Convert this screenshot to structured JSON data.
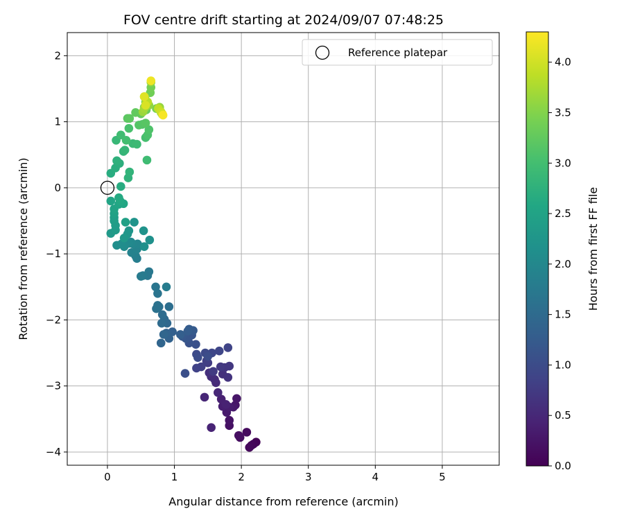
{
  "chart_data": {
    "type": "scatter",
    "title": "FOV centre drift starting at 2024/09/07 07:48:25",
    "xlabel": "Angular distance from reference (arcmin)",
    "ylabel": "Rotation from reference (arcmin)",
    "xlim": [
      -0.6,
      5.85
    ],
    "ylim": [
      -4.2,
      2.35
    ],
    "x_ticks": [
      0,
      1,
      2,
      3,
      4,
      5
    ],
    "y_ticks": [
      2,
      1,
      0,
      -1,
      -2,
      -3,
      -4
    ],
    "x_tick_labels": [
      "0",
      "1",
      "2",
      "3",
      "4",
      "5"
    ],
    "y_tick_labels": [
      "2",
      "1",
      "0",
      "−1",
      "−2",
      "−3",
      "−4"
    ],
    "grid": true,
    "legend": {
      "position": "top-right",
      "label": "Reference platepar"
    },
    "reference_point": {
      "x": 0,
      "y": 0
    },
    "colorbar": {
      "label": "Hours from first FF file",
      "colormap": "viridis",
      "range": [
        0,
        4.3
      ],
      "ticks": [
        0.0,
        0.5,
        1.0,
        1.5,
        2.0,
        2.5,
        3.0,
        3.5,
        4.0
      ],
      "tick_labels": [
        "0.0",
        "0.5",
        "1.0",
        "1.5",
        "2.0",
        "2.5",
        "3.0",
        "3.5",
        "4.0"
      ]
    },
    "points": [
      [
        2.22,
        -3.85,
        0.03
      ],
      [
        2.18,
        -3.88,
        0.05
      ],
      [
        2.15,
        -3.9,
        0.08
      ],
      [
        2.12,
        -3.93,
        0.1
      ],
      [
        2.08,
        -3.7,
        0.12
      ],
      [
        1.98,
        -3.78,
        0.15
      ],
      [
        1.96,
        -3.75,
        0.18
      ],
      [
        1.82,
        -3.6,
        0.2
      ],
      [
        1.82,
        -3.52,
        0.23
      ],
      [
        1.91,
        -3.29,
        0.25
      ],
      [
        1.93,
        -3.19,
        0.27
      ],
      [
        1.88,
        -3.32,
        0.3
      ],
      [
        1.78,
        -3.4,
        0.32
      ],
      [
        1.82,
        -3.32,
        0.35
      ],
      [
        1.72,
        -3.31,
        0.37
      ],
      [
        1.7,
        -3.2,
        0.4
      ],
      [
        1.77,
        -3.28,
        0.42
      ],
      [
        1.55,
        -3.63,
        0.45
      ],
      [
        1.45,
        -3.17,
        0.47
      ],
      [
        1.65,
        -3.1,
        0.5
      ],
      [
        1.62,
        -2.95,
        0.52
      ],
      [
        1.6,
        -2.9,
        0.55
      ],
      [
        1.55,
        -2.86,
        0.57
      ],
      [
        1.52,
        -2.8,
        0.6
      ],
      [
        1.72,
        -2.82,
        0.62
      ],
      [
        1.8,
        -2.87,
        0.65
      ],
      [
        1.75,
        -2.72,
        0.67
      ],
      [
        1.82,
        -2.7,
        0.7
      ],
      [
        1.69,
        -2.71,
        0.72
      ],
      [
        1.58,
        -2.78,
        0.75
      ],
      [
        1.5,
        -2.65,
        0.77
      ],
      [
        1.48,
        -2.62,
        0.8
      ],
      [
        1.4,
        -2.71,
        0.82
      ],
      [
        1.33,
        -2.73,
        0.85
      ],
      [
        1.8,
        -2.42,
        0.87
      ],
      [
        1.67,
        -2.47,
        0.9
      ],
      [
        1.56,
        -2.5,
        0.92
      ],
      [
        1.46,
        -2.5,
        0.95
      ],
      [
        1.33,
        -2.52,
        0.97
      ],
      [
        1.35,
        -2.57,
        1.0
      ],
      [
        1.5,
        -2.55,
        1.02
      ],
      [
        1.16,
        -2.81,
        1.05
      ],
      [
        1.32,
        -2.37,
        1.07
      ],
      [
        1.22,
        -2.35,
        1.1
      ],
      [
        1.21,
        -2.27,
        1.12
      ],
      [
        1.26,
        -2.23,
        1.15
      ],
      [
        1.17,
        -2.28,
        1.17
      ],
      [
        1.12,
        -2.25,
        1.2
      ],
      [
        1.28,
        -2.16,
        1.22
      ],
      [
        1.22,
        -2.14,
        1.25
      ],
      [
        1.2,
        -2.17,
        1.27
      ],
      [
        1.09,
        -2.22,
        1.3
      ],
      [
        0.97,
        -2.18,
        1.32
      ],
      [
        0.92,
        -2.28,
        1.35
      ],
      [
        0.88,
        -2.2,
        1.37
      ],
      [
        0.8,
        -2.35,
        1.4
      ],
      [
        0.84,
        -2.22,
        1.42
      ],
      [
        0.89,
        -2.05,
        1.45
      ],
      [
        0.85,
        -1.99,
        1.47
      ],
      [
        0.81,
        -2.05,
        1.5
      ],
      [
        0.82,
        -1.92,
        1.52
      ],
      [
        0.92,
        -1.8,
        1.55
      ],
      [
        0.77,
        -1.8,
        1.57
      ],
      [
        0.73,
        -1.83,
        1.6
      ],
      [
        0.75,
        -1.78,
        1.62
      ],
      [
        0.75,
        -1.6,
        1.65
      ],
      [
        0.72,
        -1.5,
        1.67
      ],
      [
        0.6,
        -1.33,
        1.7
      ],
      [
        0.62,
        -1.27,
        1.72
      ],
      [
        0.53,
        -1.33,
        1.75
      ],
      [
        0.5,
        -1.34,
        1.77
      ],
      [
        0.88,
        -1.5,
        1.8
      ],
      [
        0.44,
        -1.07,
        1.82
      ],
      [
        0.42,
        -1.03,
        1.85
      ],
      [
        0.4,
        -0.98,
        1.87
      ],
      [
        0.36,
        -0.98,
        1.9
      ],
      [
        0.44,
        -0.93,
        1.92
      ],
      [
        0.45,
        -0.85,
        1.95
      ],
      [
        0.38,
        -0.85,
        1.97
      ],
      [
        0.35,
        -0.82,
        2.0
      ],
      [
        0.32,
        -0.84,
        2.02
      ],
      [
        0.27,
        -0.86,
        2.05
      ],
      [
        0.25,
        -0.89,
        2.07
      ],
      [
        0.21,
        -0.85,
        2.1
      ],
      [
        0.14,
        -0.87,
        2.12
      ],
      [
        0.55,
        -0.89,
        2.15
      ],
      [
        0.63,
        -0.79,
        2.17
      ],
      [
        0.54,
        -0.65,
        2.2
      ],
      [
        0.4,
        -0.52,
        2.22
      ],
      [
        0.32,
        -0.65,
        2.25
      ],
      [
        0.3,
        -0.7,
        2.27
      ],
      [
        0.25,
        -0.76,
        2.3
      ],
      [
        0.05,
        -0.69,
        2.32
      ],
      [
        0.12,
        -0.64,
        2.35
      ],
      [
        0.12,
        -0.57,
        2.37
      ],
      [
        0.1,
        -0.5,
        2.4
      ],
      [
        0.1,
        -0.45,
        2.42
      ],
      [
        0.27,
        -0.52,
        2.45
      ],
      [
        0.1,
        -0.39,
        2.47
      ],
      [
        0.1,
        -0.32,
        2.5
      ],
      [
        0.05,
        -0.2,
        2.52
      ],
      [
        0.17,
        -0.25,
        2.55
      ],
      [
        0.24,
        -0.24,
        2.57
      ],
      [
        0.19,
        -0.2,
        2.6
      ],
      [
        0.17,
        -0.15,
        2.62
      ],
      [
        0.2,
        0.02,
        2.65
      ],
      [
        0.05,
        0.22,
        2.67
      ],
      [
        0.12,
        0.3,
        2.7
      ],
      [
        0.18,
        0.37,
        2.72
      ],
      [
        0.14,
        0.41,
        2.75
      ],
      [
        0.31,
        0.15,
        2.77
      ],
      [
        0.33,
        0.24,
        2.8
      ],
      [
        0.24,
        0.55,
        2.82
      ],
      [
        0.26,
        0.57,
        2.85
      ],
      [
        0.13,
        0.72,
        2.87
      ],
      [
        0.38,
        0.67,
        2.9
      ],
      [
        0.44,
        0.66,
        2.92
      ],
      [
        0.59,
        0.42,
        2.95
      ],
      [
        0.2,
        0.8,
        2.97
      ],
      [
        0.28,
        0.72,
        3.0
      ],
      [
        0.57,
        0.76,
        3.02
      ],
      [
        0.32,
        0.9,
        3.05
      ],
      [
        0.6,
        0.8,
        3.07
      ],
      [
        0.62,
        0.88,
        3.1
      ],
      [
        0.52,
        0.96,
        3.12
      ],
      [
        0.47,
        0.95,
        3.15
      ],
      [
        0.57,
        0.98,
        3.17
      ],
      [
        0.3,
        1.05,
        3.2
      ],
      [
        0.33,
        1.05,
        3.22
      ],
      [
        0.42,
        1.14,
        3.25
      ],
      [
        0.5,
        1.12,
        3.27
      ],
      [
        0.58,
        1.18,
        3.3
      ],
      [
        0.55,
        1.22,
        3.32
      ],
      [
        0.57,
        1.22,
        3.35
      ],
      [
        0.64,
        1.44,
        3.37
      ],
      [
        0.65,
        1.52,
        3.4
      ],
      [
        0.73,
        1.2,
        3.42
      ],
      [
        0.78,
        1.2,
        3.45
      ],
      [
        0.8,
        1.14,
        3.47
      ],
      [
        0.82,
        1.11,
        3.5
      ],
      [
        0.57,
        1.3,
        3.52
      ],
      [
        0.56,
        1.37,
        3.55
      ],
      [
        0.65,
        1.6,
        3.57
      ],
      [
        0.62,
        1.25,
        3.6
      ],
      [
        0.78,
        1.22,
        3.62
      ],
      [
        0.53,
        1.15,
        3.65
      ],
      [
        0.55,
        1.2,
        3.7
      ],
      [
        0.58,
        1.28,
        3.75
      ],
      [
        0.55,
        1.38,
        3.8
      ],
      [
        0.6,
        1.3,
        3.85
      ],
      [
        0.76,
        1.2,
        3.9
      ],
      [
        0.8,
        1.15,
        3.95
      ],
      [
        0.82,
        1.12,
        4.0
      ],
      [
        0.57,
        1.25,
        4.05
      ],
      [
        0.55,
        1.38,
        4.1
      ],
      [
        0.65,
        1.62,
        4.2
      ],
      [
        0.83,
        1.1,
        4.25
      ]
    ]
  }
}
